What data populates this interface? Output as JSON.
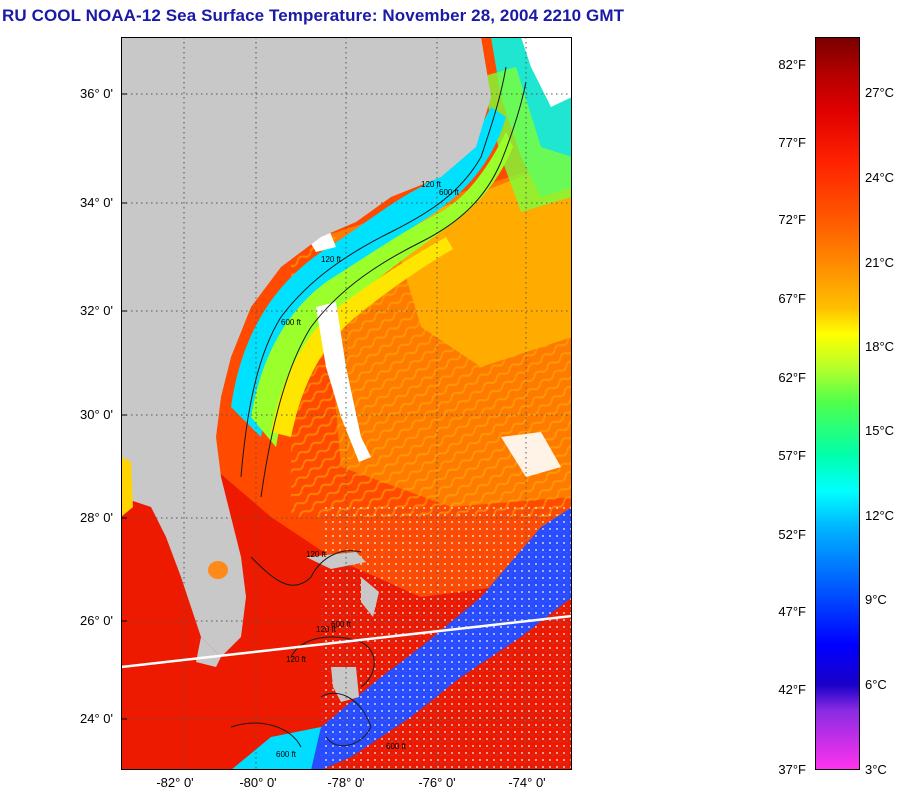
{
  "title": "RU COOL  NOAA-12  Sea Surface Temperature:  November 28, 2004 2210 GMT",
  "map": {
    "lat_labels": [
      "36° 0'",
      "34° 0'",
      "32° 0'",
      "30° 0'",
      "28° 0'",
      "26° 0'",
      "24° 0'"
    ],
    "lon_labels": [
      "-82° 0'",
      "-80° 0'",
      "-78° 0'",
      "-76° 0'",
      "-74° 0'"
    ],
    "contour_labels": [
      "120 ft",
      "600 ft",
      "120 ft",
      "600 ft",
      "120 ft",
      "600 ft",
      "120 ft",
      "600 ft",
      "120 ft",
      "600 ft"
    ],
    "colors": {
      "land": "#c8c8c8",
      "cloud": "#ffffff",
      "warm_ocean": "#ff3a00",
      "gulf_stream": "#ee1a00",
      "shelf_cool": "#00e6ff",
      "cool_blue": "#2a4cff",
      "track_line": "#ffffff"
    }
  },
  "colorbar": {
    "fahrenheit_labels": [
      "82°F",
      "77°F",
      "72°F",
      "67°F",
      "62°F",
      "57°F",
      "52°F",
      "47°F",
      "42°F",
      "37°F"
    ],
    "celsius_labels": [
      "27°C",
      "24°C",
      "21°C",
      "18°C",
      "15°C",
      "12°C",
      "9°C",
      "6°C",
      "3°C"
    ],
    "range_f": [
      37,
      84
    ],
    "range_c": [
      3,
      28.9
    ]
  }
}
